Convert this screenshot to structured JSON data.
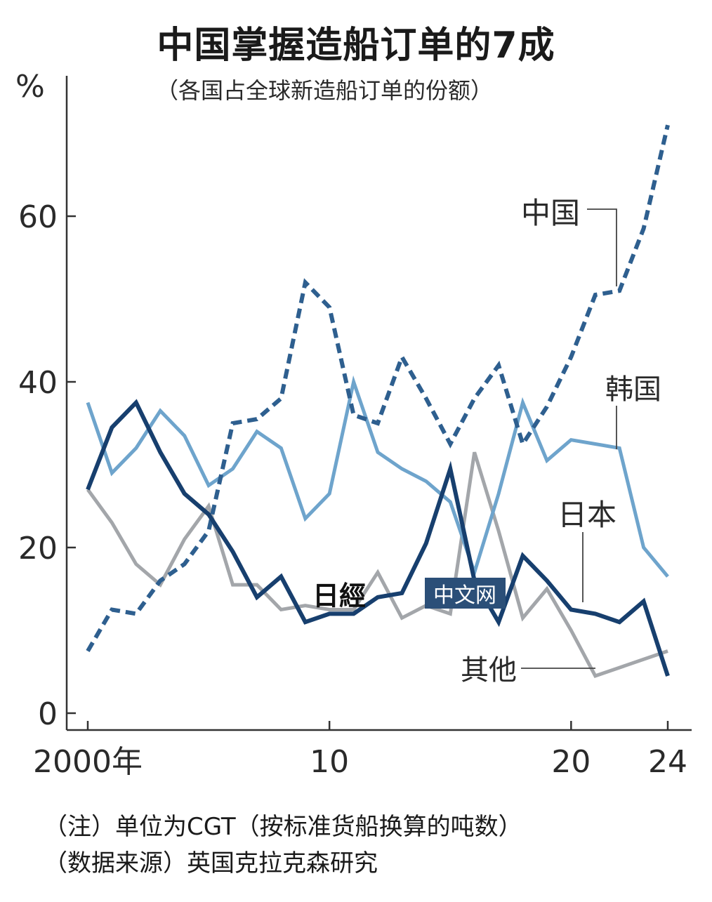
{
  "chart_data": {
    "type": "line",
    "title": "中国掌握造船订单的7成",
    "subtitle": "（各国占全球新造船订单的份额）",
    "ylabel": "%",
    "xlabel": "",
    "xlim": [
      2000,
      2024
    ],
    "ylim": [
      0,
      75
    ],
    "y_ticks": [
      "0",
      "20",
      "40",
      "60"
    ],
    "x_ticks": [
      "2000年",
      "10",
      "20",
      "24"
    ],
    "grid": false,
    "legend": "inline labels",
    "x": [
      2000,
      2001,
      2002,
      2003,
      2004,
      2005,
      2006,
      2007,
      2008,
      2009,
      2010,
      2011,
      2012,
      2013,
      2014,
      2015,
      2016,
      2017,
      2018,
      2019,
      2020,
      2021,
      2022,
      2023,
      2024
    ],
    "series": [
      {
        "name": "中国",
        "style": "dashed",
        "color": "#2e5f8f",
        "values": [
          7.5,
          12.5,
          12,
          16,
          18,
          22,
          35,
          35.5,
          38,
          52,
          49,
          36,
          35,
          43,
          38,
          32.5,
          38,
          42,
          32.5,
          37,
          43,
          50.5,
          51,
          58.5,
          71
        ]
      },
      {
        "name": "韩国",
        "style": "solid",
        "color": "#6ea4cc",
        "values": [
          37.5,
          29,
          32,
          36.5,
          33.5,
          27.5,
          29.5,
          34,
          32,
          23.5,
          26.5,
          40,
          31.5,
          29.5,
          28,
          25.5,
          17,
          26.5,
          37.5,
          30.5,
          33,
          32.5,
          32,
          20,
          16.5
        ]
      },
      {
        "name": "日本",
        "style": "solid",
        "color": "#173f6e",
        "values": [
          27,
          34.5,
          37.5,
          31.5,
          26.5,
          24,
          19.5,
          14,
          16.5,
          11,
          12,
          12,
          14,
          14.5,
          20.5,
          29.5,
          16,
          11,
          19,
          16,
          12.5,
          12,
          11,
          13.5,
          4.5
        ]
      },
      {
        "name": "其他",
        "style": "solid",
        "color": "#a3a6aa",
        "values": [
          27,
          23,
          18,
          15.5,
          21,
          25,
          15.5,
          15.5,
          12.5,
          13,
          12.5,
          12.5,
          17,
          11.5,
          13,
          12,
          31.5,
          22,
          11.5,
          15,
          10,
          4.5,
          5.5,
          6.5,
          7.5
        ]
      }
    ]
  },
  "watermark": {
    "brand": "日經",
    "text": "中文网"
  },
  "notes": {
    "note": "（注）单位为CGT（按标准货船换算的吨数）",
    "source": "（数据来源）英国克拉克森研究"
  },
  "colors": {
    "china": "#2e5f8f",
    "korea": "#6ea4cc",
    "japan": "#173f6e",
    "other": "#a3a6aa",
    "watermark_bg": "#2b4f78"
  }
}
